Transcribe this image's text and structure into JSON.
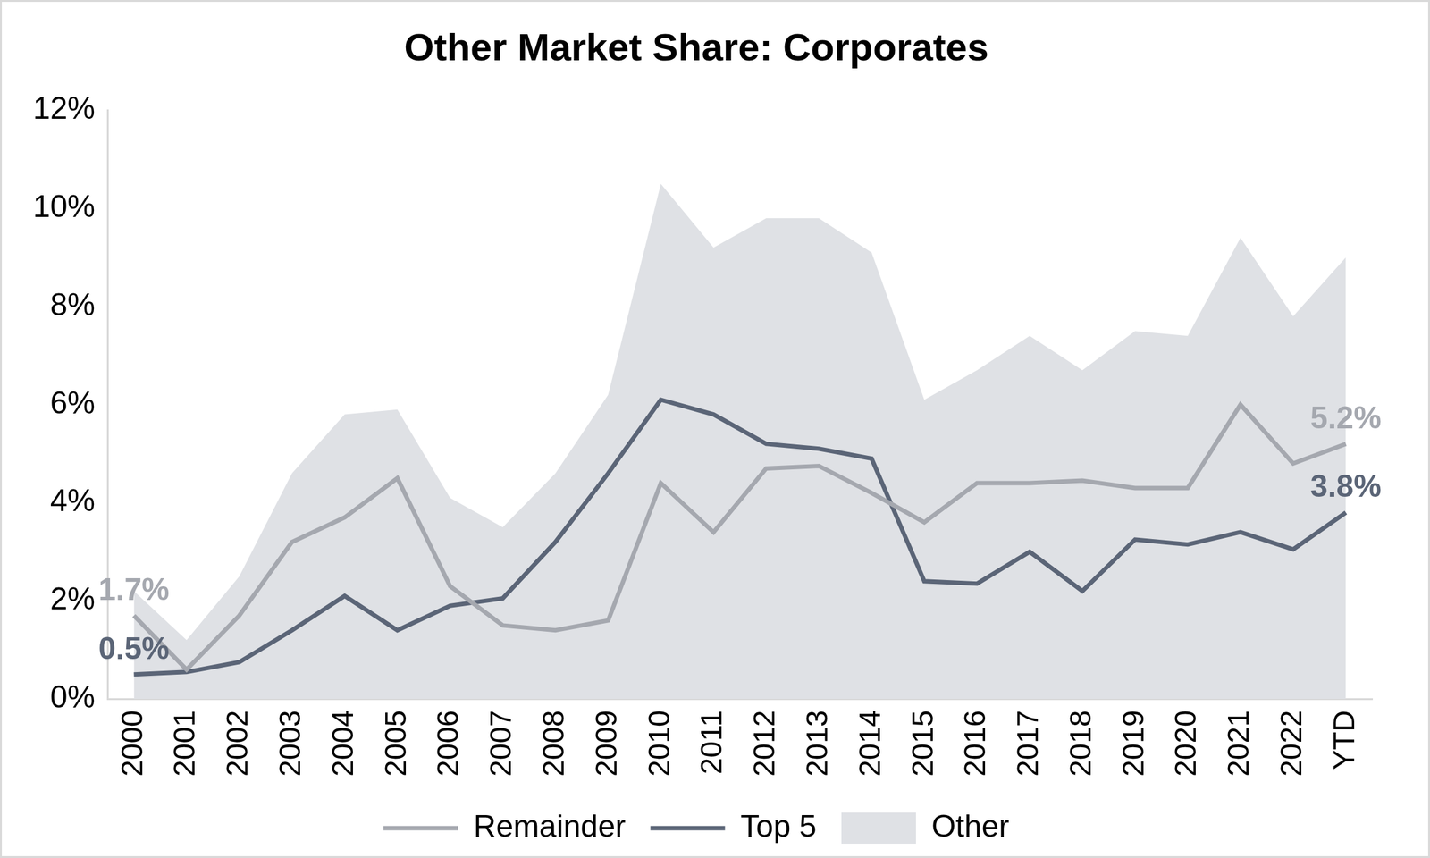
{
  "chart_data": {
    "type": "line",
    "title": "Other Market Share: Corporates",
    "categories": [
      "2000",
      "2001",
      "2002",
      "2003",
      "2004",
      "2005",
      "2006",
      "2007",
      "2008",
      "2009",
      "2010",
      "2011",
      "2012",
      "2013",
      "2014",
      "2015",
      "2016",
      "2017",
      "2018",
      "2019",
      "2020",
      "2021",
      "2022",
      "YTD"
    ],
    "series": [
      {
        "name": "Other",
        "type": "area",
        "color": "#dfe1e5",
        "values": [
          2.2,
          1.2,
          2.5,
          4.6,
          5.8,
          5.9,
          4.1,
          3.5,
          4.6,
          6.2,
          10.5,
          9.2,
          9.8,
          9.8,
          9.1,
          6.1,
          6.7,
          7.4,
          6.7,
          7.5,
          7.4,
          9.4,
          7.8,
          9.0
        ]
      },
      {
        "name": "Top 5",
        "type": "line",
        "color": "#5b6577",
        "values": [
          0.5,
          0.55,
          0.75,
          1.4,
          2.1,
          1.4,
          1.9,
          2.05,
          3.2,
          4.6,
          6.1,
          5.8,
          5.2,
          5.1,
          4.9,
          2.4,
          2.35,
          3.0,
          2.2,
          3.25,
          3.15,
          3.4,
          3.05,
          3.8
        ],
        "value_labels": [
          "0.5%",
          null,
          null,
          null,
          null,
          null,
          null,
          null,
          null,
          null,
          null,
          null,
          null,
          null,
          null,
          null,
          null,
          null,
          null,
          null,
          null,
          null,
          null,
          "3.8%"
        ]
      },
      {
        "name": "Remainder",
        "type": "line",
        "color": "#a5a8af",
        "values": [
          1.7,
          0.6,
          1.7,
          3.2,
          3.7,
          4.5,
          2.3,
          1.5,
          1.4,
          1.6,
          4.4,
          3.4,
          4.7,
          4.75,
          4.2,
          3.6,
          4.4,
          4.4,
          4.45,
          4.3,
          4.3,
          6.0,
          4.8,
          5.2
        ],
        "value_labels": [
          "1.7%",
          null,
          null,
          null,
          null,
          null,
          null,
          null,
          null,
          null,
          null,
          null,
          null,
          null,
          null,
          null,
          null,
          null,
          null,
          null,
          null,
          null,
          null,
          "5.2%"
        ]
      }
    ],
    "ylim": [
      0,
      12
    ],
    "yticks": [
      {
        "value": 0,
        "label": "0%"
      },
      {
        "value": 2,
        "label": "2%"
      },
      {
        "value": 4,
        "label": "4%"
      },
      {
        "value": 6,
        "label": "6%"
      },
      {
        "value": 8,
        "label": "8%"
      },
      {
        "value": 10,
        "label": "10%"
      },
      {
        "value": 12,
        "label": "12%"
      }
    ],
    "grid": false,
    "legend": "bottom"
  }
}
